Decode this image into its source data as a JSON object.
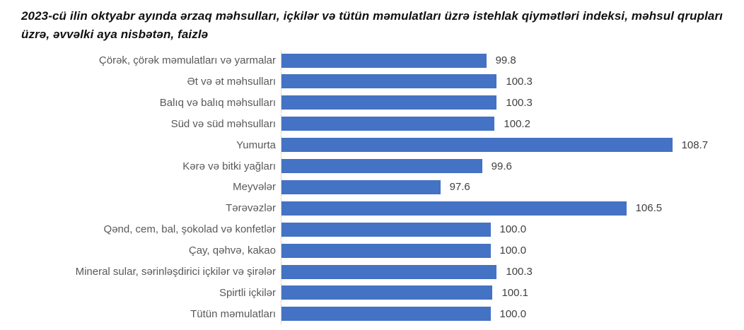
{
  "title": "2023-cü ilin oktyabr ayında ərzaq məhsulları, içkilər və tütün məmulatları üzrə istehlak qiymətləri indeksi, məhsul qrupları üzrə, əvvəlki aya nisbətən, faizlə",
  "colors": {
    "bar_fill": "#4472c4",
    "category_label": "#595959",
    "value_label": "#404040",
    "axis_line": "#d6d6d6",
    "background": "#ffffff"
  },
  "chart_data": {
    "type": "bar",
    "orientation": "horizontal",
    "title": "2023-cü ilin oktyabr ayında ərzaq məhsulları, içkilər və tütün məmulatları üzrə istehlak qiymətləri indeksi, məhsul qrupları üzrə, əvvəlki aya nisbətən, faizlə",
    "xlabel": "",
    "ylabel": "",
    "xlim": [
      90,
      110
    ],
    "grid": false,
    "legend": false,
    "data_labels": true,
    "categories": [
      "Çörək, çörək məmulatları və yarmalar",
      "Ət və ət məhsulları",
      "Balıq və balıq məhsulları",
      "Süd və süd məhsulları",
      "Yumurta",
      "Kərə və bitki yağları",
      "Meyvələr",
      "Tərəvəzlər",
      "Qənd, cem, bal, şokolad və konfetlər",
      "Çay, qəhvə, kakao",
      "Mineral sular, sərinləşdirici içkilər və şirələr",
      "Spirtli içkilər",
      "Tütün məmulatları"
    ],
    "values": [
      99.8,
      100.3,
      100.3,
      100.2,
      108.7,
      99.6,
      97.6,
      106.5,
      100.0,
      100.0,
      100.3,
      100.1,
      100.0
    ],
    "value_labels": [
      "99.8",
      "100.3",
      "100.3",
      "100.2",
      "108.7",
      "99.6",
      "97.6",
      "106.5",
      "100.0",
      "100.0",
      "100.3",
      "100.1",
      "100.0"
    ]
  }
}
